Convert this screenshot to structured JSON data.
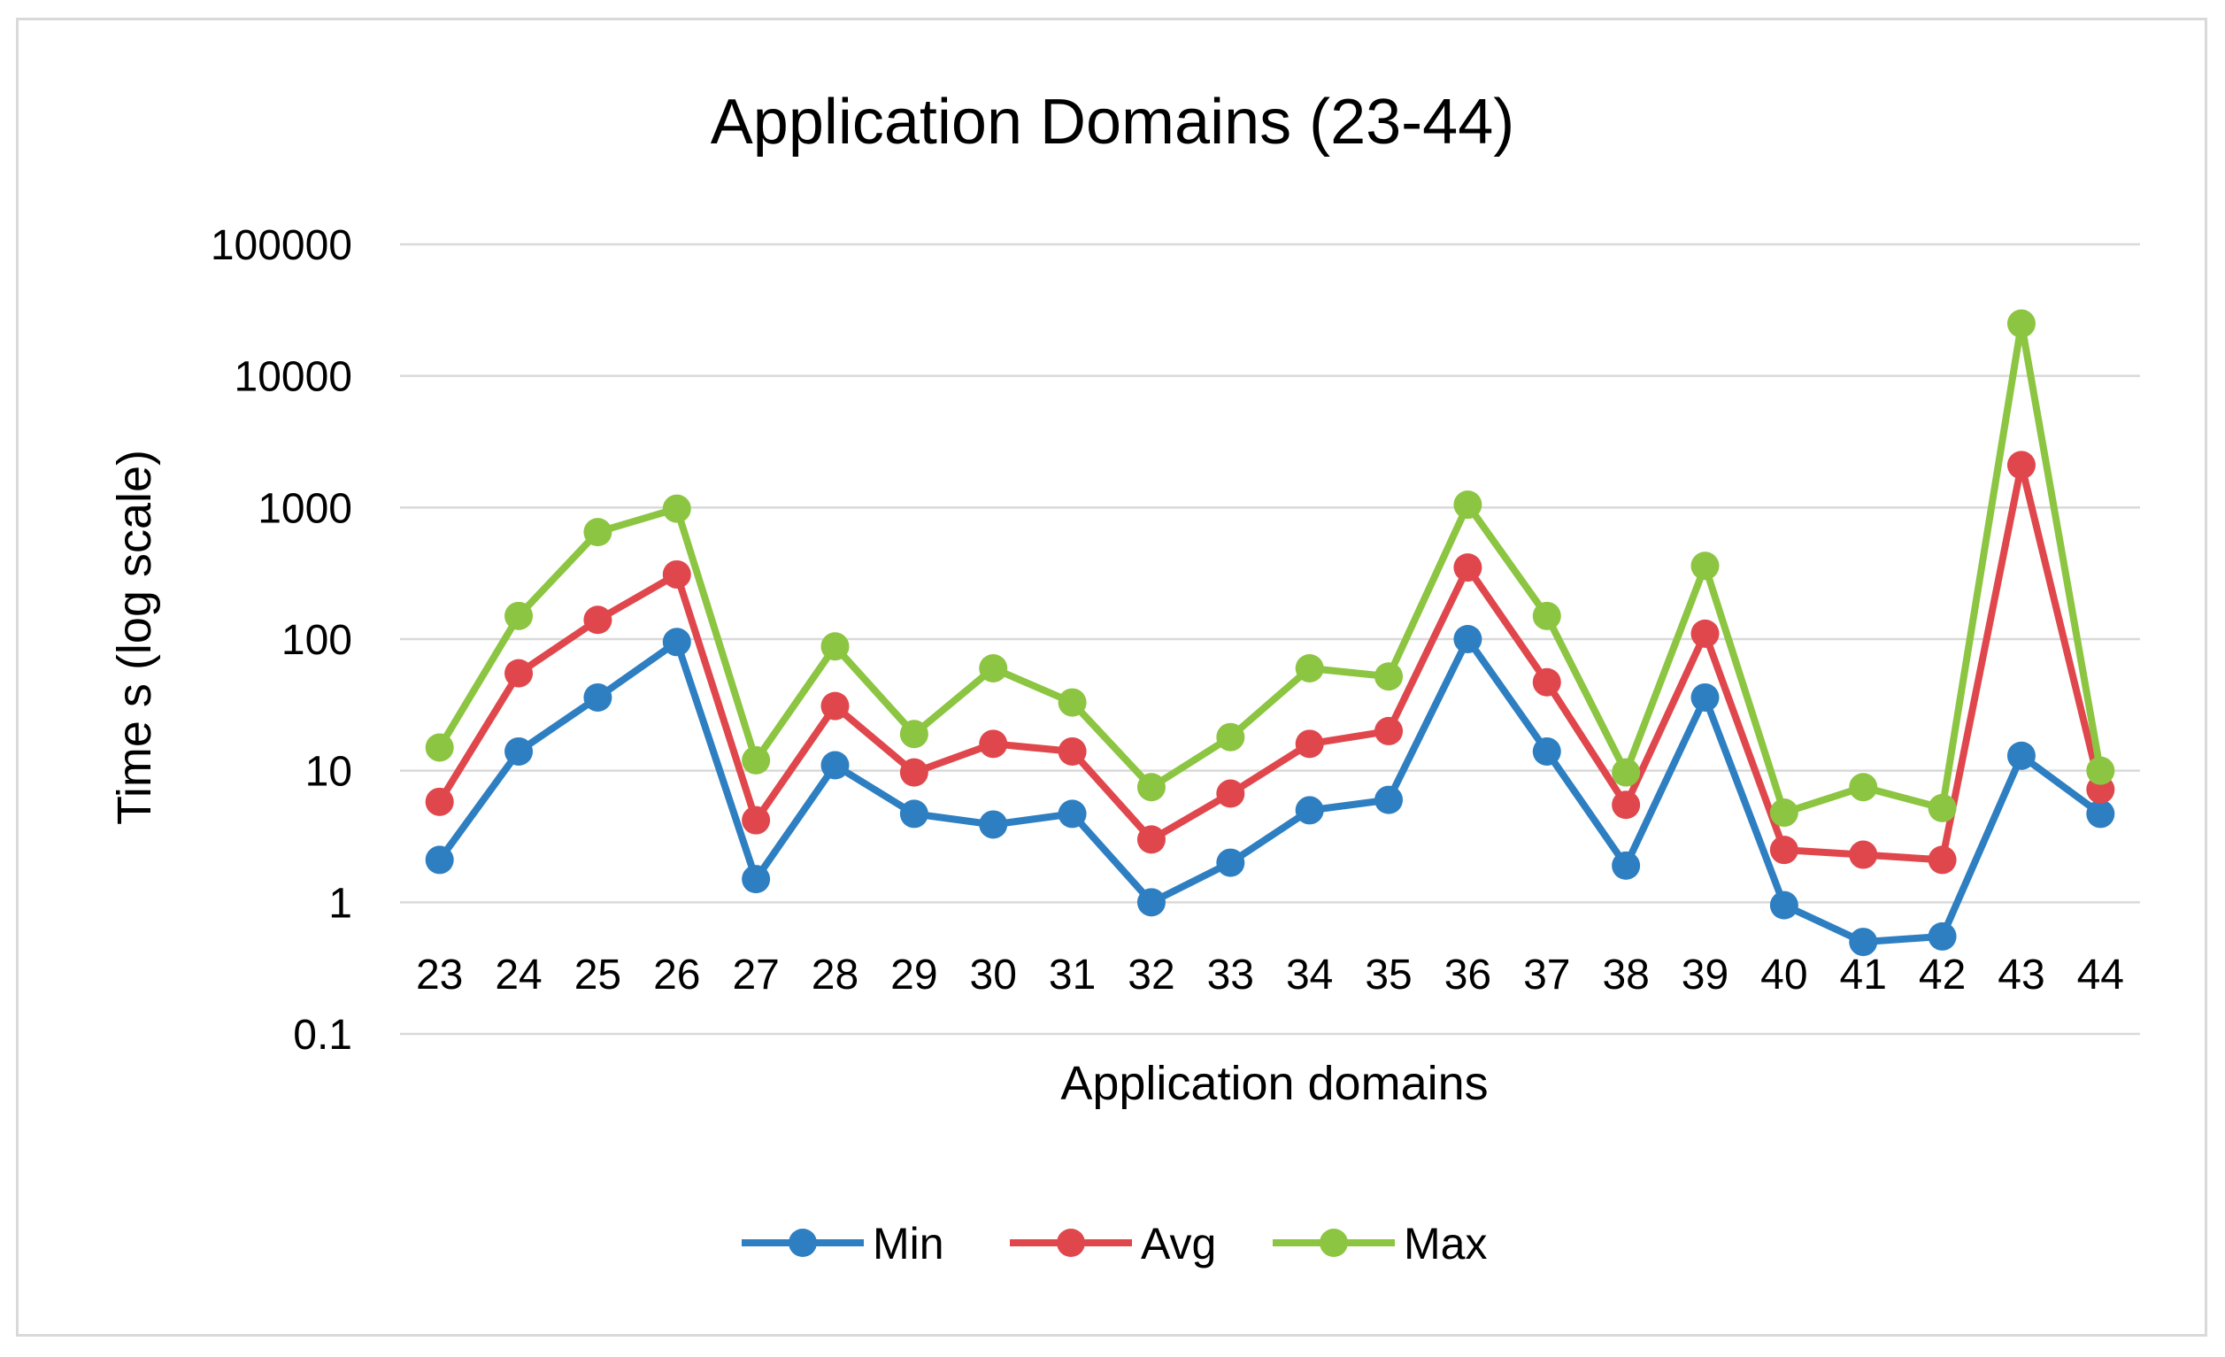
{
  "chart_data": {
    "type": "line",
    "title": "Application Domains (23-44)",
    "xlabel": "Application domains",
    "ylabel": "Time s (log scale)",
    "yscale": "log",
    "ylim": [
      0.1,
      100000
    ],
    "yticks": [
      "100000",
      "10000",
      "1000",
      "100",
      "10",
      "1",
      "0.1"
    ],
    "ytick_values": [
      100000,
      10000,
      1000,
      100,
      10,
      1,
      0.1
    ],
    "grid": true,
    "legend_position": "bottom",
    "categories": [
      "23",
      "24",
      "25",
      "26",
      "27",
      "28",
      "29",
      "30",
      "31",
      "32",
      "33",
      "34",
      "35",
      "36",
      "37",
      "38",
      "39",
      "40",
      "41",
      "42",
      "43",
      "44"
    ],
    "series": [
      {
        "name": "Min",
        "color": "#2e7fc2",
        "values": [
          2.1,
          14,
          36,
          95,
          1.5,
          11,
          4.7,
          3.9,
          4.7,
          1.0,
          2.0,
          5.0,
          6.0,
          100,
          14,
          1.9,
          36,
          0.95,
          0.5,
          0.55,
          13,
          4.7
        ]
      },
      {
        "name": "Avg",
        "color": "#e0474c",
        "values": [
          5.8,
          55,
          140,
          310,
          4.2,
          31,
          9.7,
          16,
          14,
          3.0,
          6.7,
          16,
          20,
          350,
          47,
          5.5,
          110,
          2.5,
          2.3,
          2.1,
          2100,
          7.2
        ]
      },
      {
        "name": "Max",
        "color": "#8cc541",
        "values": [
          15,
          150,
          650,
          980,
          12,
          88,
          19,
          60,
          33,
          7.5,
          18,
          60,
          52,
          1050,
          150,
          9.7,
          360,
          4.8,
          7.5,
          5.2,
          25000,
          10
        ]
      }
    ]
  }
}
